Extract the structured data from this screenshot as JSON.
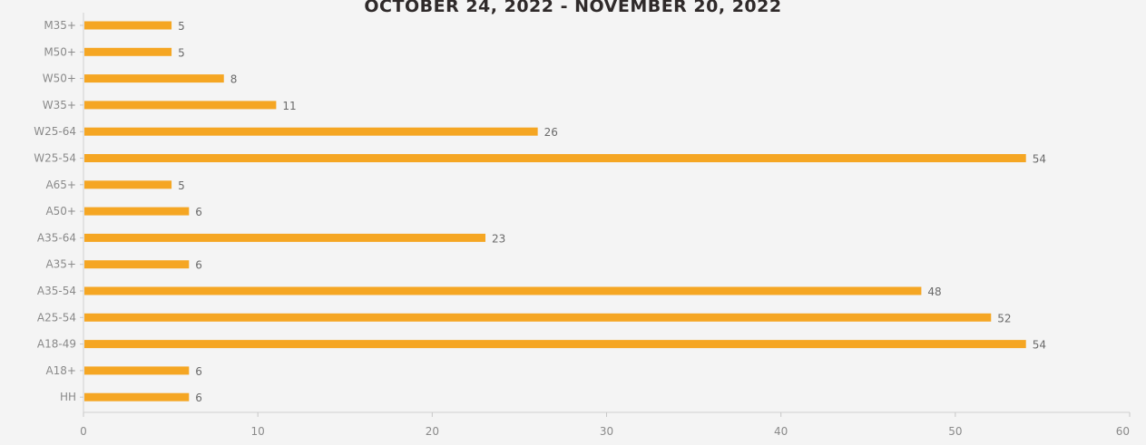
{
  "chart_data": {
    "type": "bar",
    "orientation": "horizontal",
    "title": "OCTOBER 24, 2022 - NOVEMBER 20, 2022",
    "categories": [
      "M35+",
      "M50+",
      "W50+",
      "W35+",
      "W25-64",
      "W25-54",
      "A65+",
      "A50+",
      "A35-64",
      "A35+",
      "A35-54",
      "A25-54",
      "A18-49",
      "A18+",
      "HH"
    ],
    "values": [
      5,
      5,
      8,
      11,
      26,
      54,
      5,
      6,
      23,
      6,
      48,
      52,
      54,
      6,
      6
    ],
    "xlim": [
      0,
      60
    ],
    "xticks": [
      0,
      10,
      20,
      30,
      40,
      50,
      60
    ],
    "xlabel": "",
    "ylabel": "",
    "bar_color": "#f5a623",
    "grid": false
  }
}
